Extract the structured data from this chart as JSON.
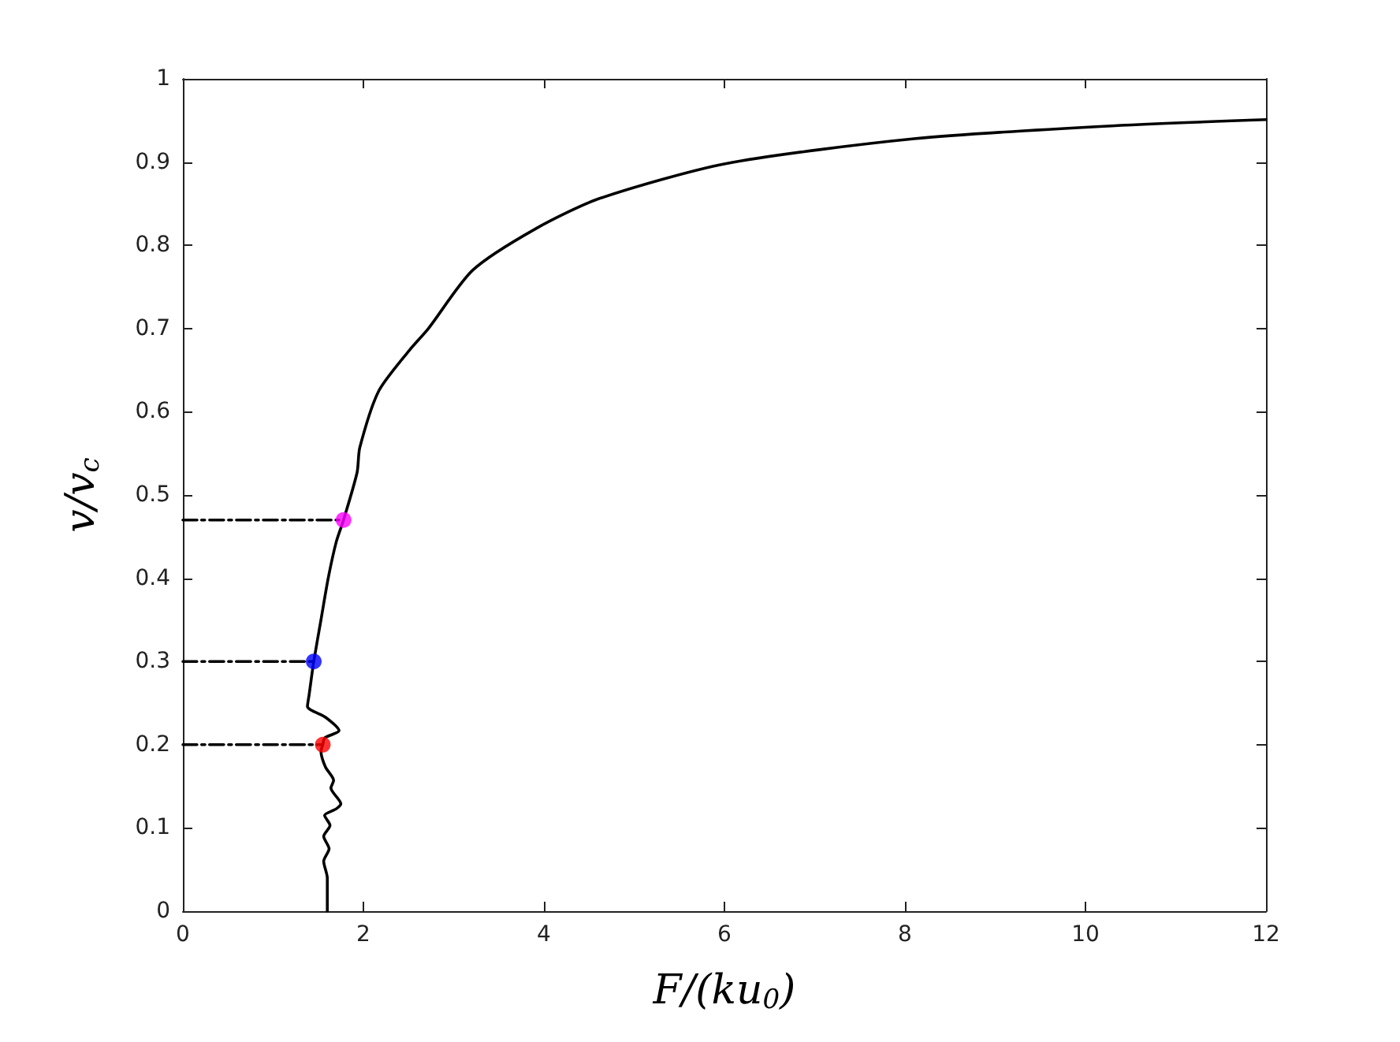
{
  "chart_data": {
    "type": "line",
    "xlabel": "F/(ku$_{0}$)",
    "ylabel": "v/v$_{c}$",
    "xlim": [
      0,
      12
    ],
    "xticks": [
      0,
      2,
      4,
      6,
      8,
      10,
      12
    ],
    "ylim": [
      0,
      1
    ],
    "yticks": [
      0,
      0.1,
      0.2,
      0.3,
      0.4,
      0.5,
      0.6,
      0.7,
      0.8,
      0.9,
      1
    ],
    "grid": false,
    "series": [
      {
        "color": "#000000",
        "marker": "none",
        "line_style": "solid",
        "x": [
          1.6,
          1.6,
          1.56,
          1.62,
          1.56,
          1.63,
          1.57,
          1.7,
          1.75,
          1.64,
          1.67,
          1.58,
          1.53,
          1.55,
          1.57,
          1.73,
          1.58,
          1.38,
          1.4,
          1.42,
          1.45,
          1.53,
          1.61,
          1.7,
          1.78,
          1.93,
          1.96,
          2.17,
          2.51,
          2.72,
          3.21,
          3.91,
          4.61,
          6.01,
          8.1,
          10.2,
          12
        ],
        "values": [
          0,
          0.04,
          0.06,
          0.075,
          0.09,
          0.103,
          0.115,
          0.123,
          0.129,
          0.148,
          0.157,
          0.173,
          0.192,
          0.2,
          0.208,
          0.217,
          0.233,
          0.246,
          0.261,
          0.277,
          0.3,
          0.35,
          0.4,
          0.444,
          0.47,
          0.527,
          0.557,
          0.625,
          0.674,
          0.7,
          0.77,
          0.82,
          0.856,
          0.898,
          0.928,
          0.943,
          0.951
        ]
      },
      {
        "type": "line",
        "color": "#000000",
        "marker": "none",
        "line_style": "dashed",
        "x": [
          0,
          1.78
        ],
        "values": [
          0.47,
          0.47
        ]
      },
      {
        "type": "line",
        "color": "#000000",
        "marker": "none",
        "line_style": "dashed",
        "x": [
          0,
          1.45
        ],
        "values": [
          0.3,
          0.3
        ]
      },
      {
        "type": "line",
        "color": "#000000",
        "marker": "none",
        "line_style": "dashed",
        "x": [
          0,
          1.55
        ],
        "values": [
          0.2,
          0.2
        ]
      },
      {
        "type": "scatter",
        "color": "#ff00ff",
        "marker": "circle",
        "x": [
          1.78
        ],
        "values": [
          0.47
        ]
      },
      {
        "type": "scatter",
        "color": "#0000ff",
        "marker": "circle",
        "x": [
          1.45
        ],
        "values": [
          0.3
        ]
      },
      {
        "type": "scatter",
        "color": "#ff0000",
        "marker": "circle",
        "x": [
          1.55
        ],
        "values": [
          0.2
        ]
      }
    ]
  }
}
